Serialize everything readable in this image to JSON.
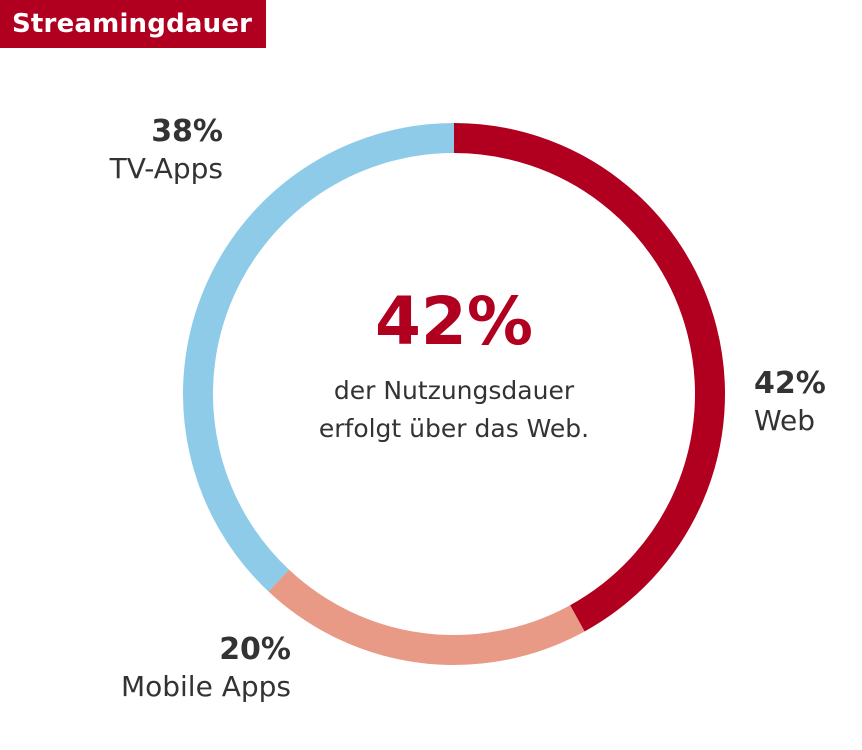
{
  "header": {
    "title": "Streamingdauer"
  },
  "center": {
    "value": "42%",
    "line1": "der Nutzungsdauer",
    "line2": "erfolgt über das Web."
  },
  "chart_data": {
    "type": "pie",
    "donut": true,
    "start_angle_deg": 0,
    "direction": "clockwise",
    "segments": [
      {
        "label": "Web",
        "value": 42,
        "display": "42%",
        "color": "#b1001f"
      },
      {
        "label": "Mobile Apps",
        "value": 20,
        "display": "20%",
        "color": "#e89a87"
      },
      {
        "label": "TV-Apps",
        "value": 38,
        "display": "38%",
        "color": "#8ecbe8"
      }
    ]
  },
  "colors": {
    "accent": "#b1001f",
    "text": "#333333",
    "background": "#ffffff"
  }
}
